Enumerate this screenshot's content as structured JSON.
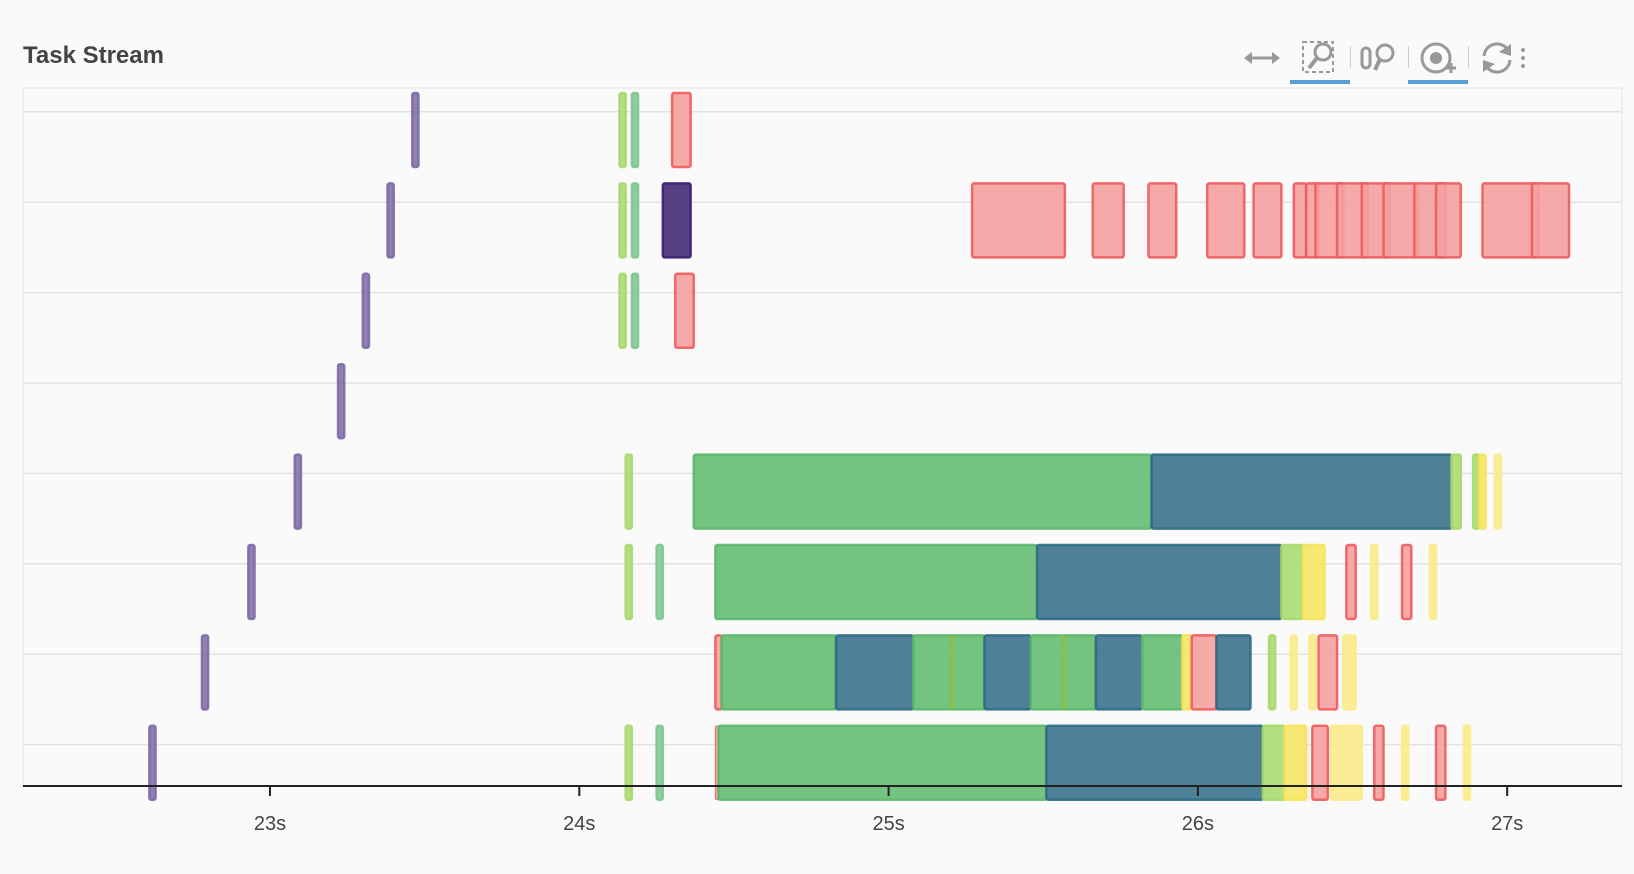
{
  "header": {
    "title": "Task Stream"
  },
  "toolbar": {
    "tools": [
      {
        "name": "pan-tool",
        "active": false
      },
      {
        "name": "box-zoom-tool",
        "active": true
      },
      {
        "name": "wheel-zoom-tool",
        "active": false
      },
      {
        "name": "hover-tool",
        "active": true
      },
      {
        "name": "reset-tool",
        "active": false
      }
    ]
  },
  "colors": {
    "purple": "#7c6aa6",
    "lightgreen": "#a6d96a",
    "midgreen": "#7cc68f",
    "green": "#5cb86b",
    "teal": "#2f6b85",
    "red": "#ef5b5b",
    "redfill": "#f4a0a0",
    "yellow": "#f6e35a",
    "lightyellow": "#f9eb8a",
    "darkpurple": "#3b1f6e",
    "olive": "#8bbf4a"
  },
  "chart_data": {
    "type": "gantt",
    "title": "Task Stream",
    "xlabel": "",
    "ylabel": "",
    "xlim": [
      22.2,
      27.38
    ],
    "x_ticks": [
      {
        "value": 23,
        "label": "23s"
      },
      {
        "value": 24,
        "label": "24s"
      },
      {
        "value": 25,
        "label": "25s"
      },
      {
        "value": 26,
        "label": "26s"
      },
      {
        "value": 27,
        "label": "27s"
      }
    ],
    "rows": [
      {
        "worker": 0,
        "tasks": [
          {
            "start": 23.46,
            "end": 23.48,
            "color": "purple"
          },
          {
            "start": 24.13,
            "end": 24.15,
            "color": "lightgreen"
          },
          {
            "start": 24.17,
            "end": 24.19,
            "color": "midgreen"
          },
          {
            "start": 24.3,
            "end": 24.36,
            "color": "red"
          }
        ]
      },
      {
        "worker": 1,
        "tasks": [
          {
            "start": 23.38,
            "end": 23.4,
            "color": "purple"
          },
          {
            "start": 24.13,
            "end": 24.15,
            "color": "lightgreen"
          },
          {
            "start": 24.17,
            "end": 24.19,
            "color": "midgreen"
          },
          {
            "start": 24.27,
            "end": 24.36,
            "color": "darkpurple"
          },
          {
            "start": 25.27,
            "end": 25.57,
            "color": "red"
          },
          {
            "start": 25.66,
            "end": 25.76,
            "color": "red"
          },
          {
            "start": 25.84,
            "end": 25.93,
            "color": "red"
          },
          {
            "start": 26.03,
            "end": 26.15,
            "color": "red"
          },
          {
            "start": 26.18,
            "end": 26.27,
            "color": "red"
          },
          {
            "start": 26.31,
            "end": 26.35,
            "color": "red"
          },
          {
            "start": 26.35,
            "end": 26.39,
            "color": "red"
          },
          {
            "start": 26.38,
            "end": 26.47,
            "color": "red"
          },
          {
            "start": 26.45,
            "end": 26.55,
            "color": "red"
          },
          {
            "start": 26.53,
            "end": 26.62,
            "color": "red"
          },
          {
            "start": 26.6,
            "end": 26.71,
            "color": "red"
          },
          {
            "start": 26.7,
            "end": 26.8,
            "color": "red"
          },
          {
            "start": 26.77,
            "end": 26.85,
            "color": "red"
          },
          {
            "start": 26.92,
            "end": 27.1,
            "color": "red"
          },
          {
            "start": 27.08,
            "end": 27.2,
            "color": "red"
          }
        ]
      },
      {
        "worker": 2,
        "tasks": [
          {
            "start": 23.3,
            "end": 23.32,
            "color": "purple"
          },
          {
            "start": 24.13,
            "end": 24.15,
            "color": "lightgreen"
          },
          {
            "start": 24.17,
            "end": 24.19,
            "color": "midgreen"
          },
          {
            "start": 24.31,
            "end": 24.37,
            "color": "red"
          }
        ]
      },
      {
        "worker": 3,
        "tasks": [
          {
            "start": 23.22,
            "end": 23.24,
            "color": "purple"
          }
        ]
      },
      {
        "worker": 4,
        "tasks": [
          {
            "start": 23.08,
            "end": 23.1,
            "color": "purple"
          },
          {
            "start": 24.15,
            "end": 24.17,
            "color": "lightgreen"
          },
          {
            "start": 24.37,
            "end": 25.85,
            "color": "green"
          },
          {
            "start": 25.85,
            "end": 26.82,
            "color": "teal"
          },
          {
            "start": 26.82,
            "end": 26.85,
            "color": "lightgreen"
          },
          {
            "start": 26.89,
            "end": 26.91,
            "color": "lightgreen"
          },
          {
            "start": 26.91,
            "end": 26.93,
            "color": "yellow"
          },
          {
            "start": 26.96,
            "end": 26.98,
            "color": "lightyellow"
          }
        ]
      },
      {
        "worker": 5,
        "tasks": [
          {
            "start": 22.93,
            "end": 22.95,
            "color": "purple"
          },
          {
            "start": 24.15,
            "end": 24.17,
            "color": "lightgreen"
          },
          {
            "start": 24.25,
            "end": 24.27,
            "color": "midgreen"
          },
          {
            "start": 24.44,
            "end": 25.48,
            "color": "green"
          },
          {
            "start": 25.48,
            "end": 26.27,
            "color": "teal"
          },
          {
            "start": 26.27,
            "end": 26.34,
            "color": "lightgreen"
          },
          {
            "start": 26.34,
            "end": 26.41,
            "color": "yellow"
          },
          {
            "start": 26.48,
            "end": 26.51,
            "color": "red"
          },
          {
            "start": 26.56,
            "end": 26.58,
            "color": "lightyellow"
          },
          {
            "start": 26.66,
            "end": 26.69,
            "color": "red"
          },
          {
            "start": 26.75,
            "end": 26.77,
            "color": "lightyellow"
          }
        ]
      },
      {
        "worker": 6,
        "tasks": [
          {
            "start": 22.78,
            "end": 22.8,
            "color": "purple"
          },
          {
            "start": 24.44,
            "end": 24.46,
            "color": "red"
          },
          {
            "start": 24.46,
            "end": 24.83,
            "color": "green"
          },
          {
            "start": 24.83,
            "end": 25.08,
            "color": "teal"
          },
          {
            "start": 25.08,
            "end": 25.31,
            "color": "green"
          },
          {
            "start": 25.2,
            "end": 25.21,
            "color": "olive"
          },
          {
            "start": 25.31,
            "end": 25.46,
            "color": "teal"
          },
          {
            "start": 25.46,
            "end": 25.67,
            "color": "green"
          },
          {
            "start": 25.56,
            "end": 25.57,
            "color": "olive"
          },
          {
            "start": 25.67,
            "end": 25.82,
            "color": "teal"
          },
          {
            "start": 25.82,
            "end": 25.95,
            "color": "green"
          },
          {
            "start": 25.95,
            "end": 25.98,
            "color": "yellow"
          },
          {
            "start": 25.98,
            "end": 26.06,
            "color": "red"
          },
          {
            "start": 26.06,
            "end": 26.17,
            "color": "teal"
          },
          {
            "start": 26.23,
            "end": 26.25,
            "color": "lightgreen"
          },
          {
            "start": 26.3,
            "end": 26.32,
            "color": "lightyellow"
          },
          {
            "start": 26.36,
            "end": 26.38,
            "color": "lightyellow"
          },
          {
            "start": 26.39,
            "end": 26.45,
            "color": "red"
          },
          {
            "start": 26.47,
            "end": 26.51,
            "color": "lightyellow"
          }
        ]
      },
      {
        "worker": 7,
        "tasks": [
          {
            "start": 22.61,
            "end": 22.63,
            "color": "purple"
          },
          {
            "start": 24.15,
            "end": 24.17,
            "color": "lightgreen"
          },
          {
            "start": 24.25,
            "end": 24.27,
            "color": "midgreen"
          },
          {
            "start": 24.44,
            "end": 24.45,
            "color": "red"
          },
          {
            "start": 24.45,
            "end": 25.51,
            "color": "green"
          },
          {
            "start": 25.51,
            "end": 26.21,
            "color": "teal"
          },
          {
            "start": 26.21,
            "end": 26.28,
            "color": "lightgreen"
          },
          {
            "start": 26.28,
            "end": 26.35,
            "color": "yellow"
          },
          {
            "start": 26.37,
            "end": 26.42,
            "color": "red"
          },
          {
            "start": 26.43,
            "end": 26.53,
            "color": "lightyellow"
          },
          {
            "start": 26.57,
            "end": 26.6,
            "color": "red"
          },
          {
            "start": 26.66,
            "end": 26.68,
            "color": "lightyellow"
          },
          {
            "start": 26.77,
            "end": 26.8,
            "color": "red"
          },
          {
            "start": 26.86,
            "end": 26.88,
            "color": "lightyellow"
          }
        ]
      }
    ]
  }
}
